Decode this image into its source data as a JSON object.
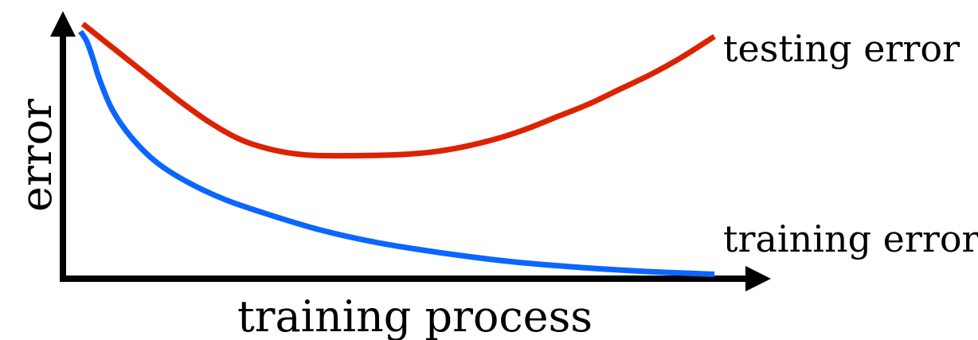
{
  "chart_data": {
    "type": "line",
    "xlabel": "training process",
    "ylabel": "error",
    "grid": false,
    "legend": "labels at right end of each series",
    "axis_color": "#000000",
    "series": [
      {
        "name": "testing error",
        "color": "#dd2200",
        "x": [
          0.0,
          0.05,
          0.1,
          0.15,
          0.2,
          0.25,
          0.3,
          0.35,
          0.4,
          0.45,
          0.5,
          0.55,
          0.6,
          0.65,
          0.7,
          0.75,
          0.8,
          0.85,
          0.9,
          0.95,
          1.0
        ],
        "y": [
          1.0,
          0.9,
          0.8,
          0.7,
          0.61,
          0.54,
          0.5,
          0.48,
          0.476,
          0.477,
          0.48,
          0.49,
          0.51,
          0.54,
          0.58,
          0.63,
          0.68,
          0.74,
          0.8,
          0.87,
          0.95
        ]
      },
      {
        "name": "training error",
        "color": "#0a66ff",
        "x": [
          0.0,
          0.01,
          0.02,
          0.03,
          0.05,
          0.08,
          0.12,
          0.17,
          0.23,
          0.3,
          0.38,
          0.47,
          0.57,
          0.68,
          0.8,
          0.9,
          1.0
        ],
        "y": [
          0.97,
          0.93,
          0.86,
          0.78,
          0.66,
          0.55,
          0.45,
          0.37,
          0.3,
          0.24,
          0.18,
          0.13,
          0.09,
          0.055,
          0.03,
          0.015,
          0.005
        ]
      }
    ]
  }
}
